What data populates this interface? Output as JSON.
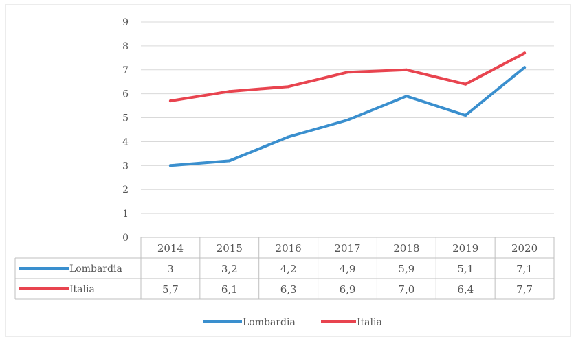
{
  "chart_data": {
    "type": "line",
    "title": "",
    "xlabel": "",
    "ylabel": "",
    "categories": [
      "2014",
      "2015",
      "2016",
      "2017",
      "2018",
      "2019",
      "2020"
    ],
    "ylim": [
      0,
      9
    ],
    "yticks": [
      "0",
      "1",
      "2",
      "3",
      "4",
      "5",
      "6",
      "7",
      "8",
      "9"
    ],
    "grid": true,
    "legend_position": "bottom",
    "series": [
      {
        "name": "Lombardia",
        "color": "#3a8fce",
        "values": [
          3,
          3.2,
          4.2,
          4.9,
          5.9,
          5.1,
          7.1
        ],
        "labels": [
          "3",
          "3,2",
          "4,2",
          "4,9",
          "5,9",
          "5,1",
          "7,1"
        ]
      },
      {
        "name": "Italia",
        "color": "#e8444f",
        "values": [
          5.7,
          6.1,
          6.3,
          6.9,
          7.0,
          6.4,
          7.7
        ],
        "labels": [
          "5,7",
          "6,1",
          "6,3",
          "6,9",
          "7,0",
          "6,4",
          "7,7"
        ]
      }
    ]
  }
}
